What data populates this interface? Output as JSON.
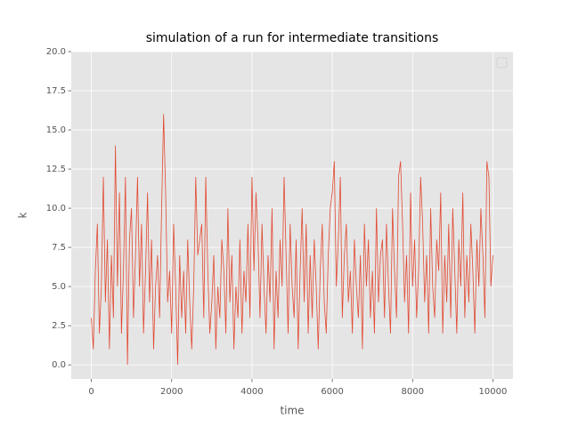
{
  "chart_data": {
    "type": "line",
    "title": "simulation of a run for intermediate transitions",
    "x_label": "time",
    "y_label": "k",
    "xlim": [
      -500,
      10500
    ],
    "ylim": [
      -0.9,
      20
    ],
    "xticks": [
      0,
      2000,
      4000,
      6000,
      8000,
      10000
    ],
    "yticks": [
      {
        "value": 0,
        "label": "0.0"
      },
      {
        "value": 2.5,
        "label": "2.5"
      },
      {
        "value": 5,
        "label": "5.0"
      },
      {
        "value": 7.5,
        "label": "7.5"
      },
      {
        "value": 10,
        "label": "10.0"
      },
      {
        "value": 12.5,
        "label": "12.5"
      },
      {
        "value": 15,
        "label": "15.0"
      },
      {
        "value": 17.5,
        "label": "17.5"
      },
      {
        "value": 20,
        "label": "20.0"
      }
    ],
    "grid": true,
    "legend": "upper right",
    "x": [
      0,
      50,
      100,
      150,
      200,
      250,
      300,
      350,
      400,
      450,
      500,
      550,
      600,
      650,
      700,
      750,
      800,
      850,
      900,
      950,
      1000,
      1050,
      1100,
      1150,
      1200,
      1250,
      1300,
      1350,
      1400,
      1450,
      1500,
      1550,
      1600,
      1650,
      1700,
      1750,
      1800,
      1850,
      1900,
      1950,
      2000,
      2050,
      2100,
      2150,
      2200,
      2250,
      2300,
      2350,
      2400,
      2450,
      2500,
      2550,
      2600,
      2650,
      2700,
      2750,
      2800,
      2850,
      2900,
      2950,
      3000,
      3050,
      3100,
      3150,
      3200,
      3250,
      3300,
      3350,
      3400,
      3450,
      3500,
      3550,
      3600,
      3650,
      3700,
      3750,
      3800,
      3850,
      3900,
      3950,
      4000,
      4050,
      4100,
      4150,
      4200,
      4250,
      4300,
      4350,
      4400,
      4450,
      4500,
      4550,
      4600,
      4650,
      4700,
      4750,
      4800,
      4850,
      4900,
      4950,
      5000,
      5050,
      5100,
      5150,
      5200,
      5250,
      5300,
      5350,
      5400,
      5450,
      5500,
      5550,
      5600,
      5650,
      5700,
      5750,
      5800,
      5850,
      5900,
      5950,
      6000,
      6050,
      6100,
      6150,
      6200,
      6250,
      6300,
      6350,
      6400,
      6450,
      6500,
      6550,
      6600,
      6650,
      6700,
      6750,
      6800,
      6850,
      6900,
      6950,
      7000,
      7050,
      7100,
      7150,
      7200,
      7250,
      7300,
      7350,
      7400,
      7450,
      7500,
      7550,
      7600,
      7650,
      7700,
      7750,
      7800,
      7850,
      7900,
      7950,
      8000,
      8050,
      8100,
      8150,
      8200,
      8250,
      8300,
      8350,
      8400,
      8450,
      8500,
      8550,
      8600,
      8650,
      8700,
      8750,
      8800,
      8850,
      8900,
      8950,
      9000,
      9050,
      9100,
      9150,
      9200,
      9250,
      9300,
      9350,
      9400,
      9450,
      9500,
      9550,
      9600,
      9650,
      9700,
      9750,
      9800,
      9850,
      9900,
      9950,
      10000
    ],
    "series": [
      {
        "color": "#E24A33",
        "values": [
          3,
          1,
          6,
          9,
          2,
          5,
          12,
          4,
          8,
          1,
          7,
          3,
          14,
          5,
          11,
          2,
          6,
          12,
          0,
          8,
          10,
          3,
          7,
          12,
          5,
          9,
          2,
          6,
          11,
          4,
          8,
          1,
          5,
          7,
          3,
          10,
          16,
          11,
          4,
          6,
          2,
          9,
          5,
          0,
          7,
          3,
          6,
          2,
          8,
          4,
          1,
          5,
          12,
          7,
          8,
          9,
          3,
          12,
          6,
          2,
          4,
          7,
          1,
          5,
          3,
          8,
          6,
          2,
          10,
          4,
          7,
          1,
          5,
          3,
          8,
          2,
          6,
          4,
          9,
          3,
          12,
          6,
          11,
          8,
          3,
          9,
          5,
          2,
          7,
          4,
          10,
          1,
          6,
          3,
          8,
          5,
          12,
          7,
          2,
          9,
          5,
          3,
          8,
          1,
          6,
          10,
          4,
          9,
          2,
          7,
          3,
          8,
          5,
          1,
          6,
          9,
          4,
          2,
          7,
          10,
          11,
          13,
          5,
          8,
          12,
          3,
          7,
          9,
          4,
          6,
          2,
          8,
          5,
          3,
          7,
          1,
          9,
          5,
          8,
          3,
          6,
          2,
          10,
          4,
          7,
          8,
          3,
          9,
          5,
          2,
          10,
          6,
          3,
          12,
          13,
          9,
          4,
          7,
          2,
          11,
          5,
          8,
          3,
          6,
          12,
          9,
          4,
          7,
          2,
          10,
          5,
          3,
          8,
          6,
          11,
          2,
          7,
          4,
          9,
          3,
          10,
          6,
          2,
          8,
          5,
          11,
          3,
          7,
          4,
          9,
          6,
          2,
          8,
          5,
          10,
          7,
          3,
          13,
          12,
          5,
          7
        ]
      }
    ]
  }
}
